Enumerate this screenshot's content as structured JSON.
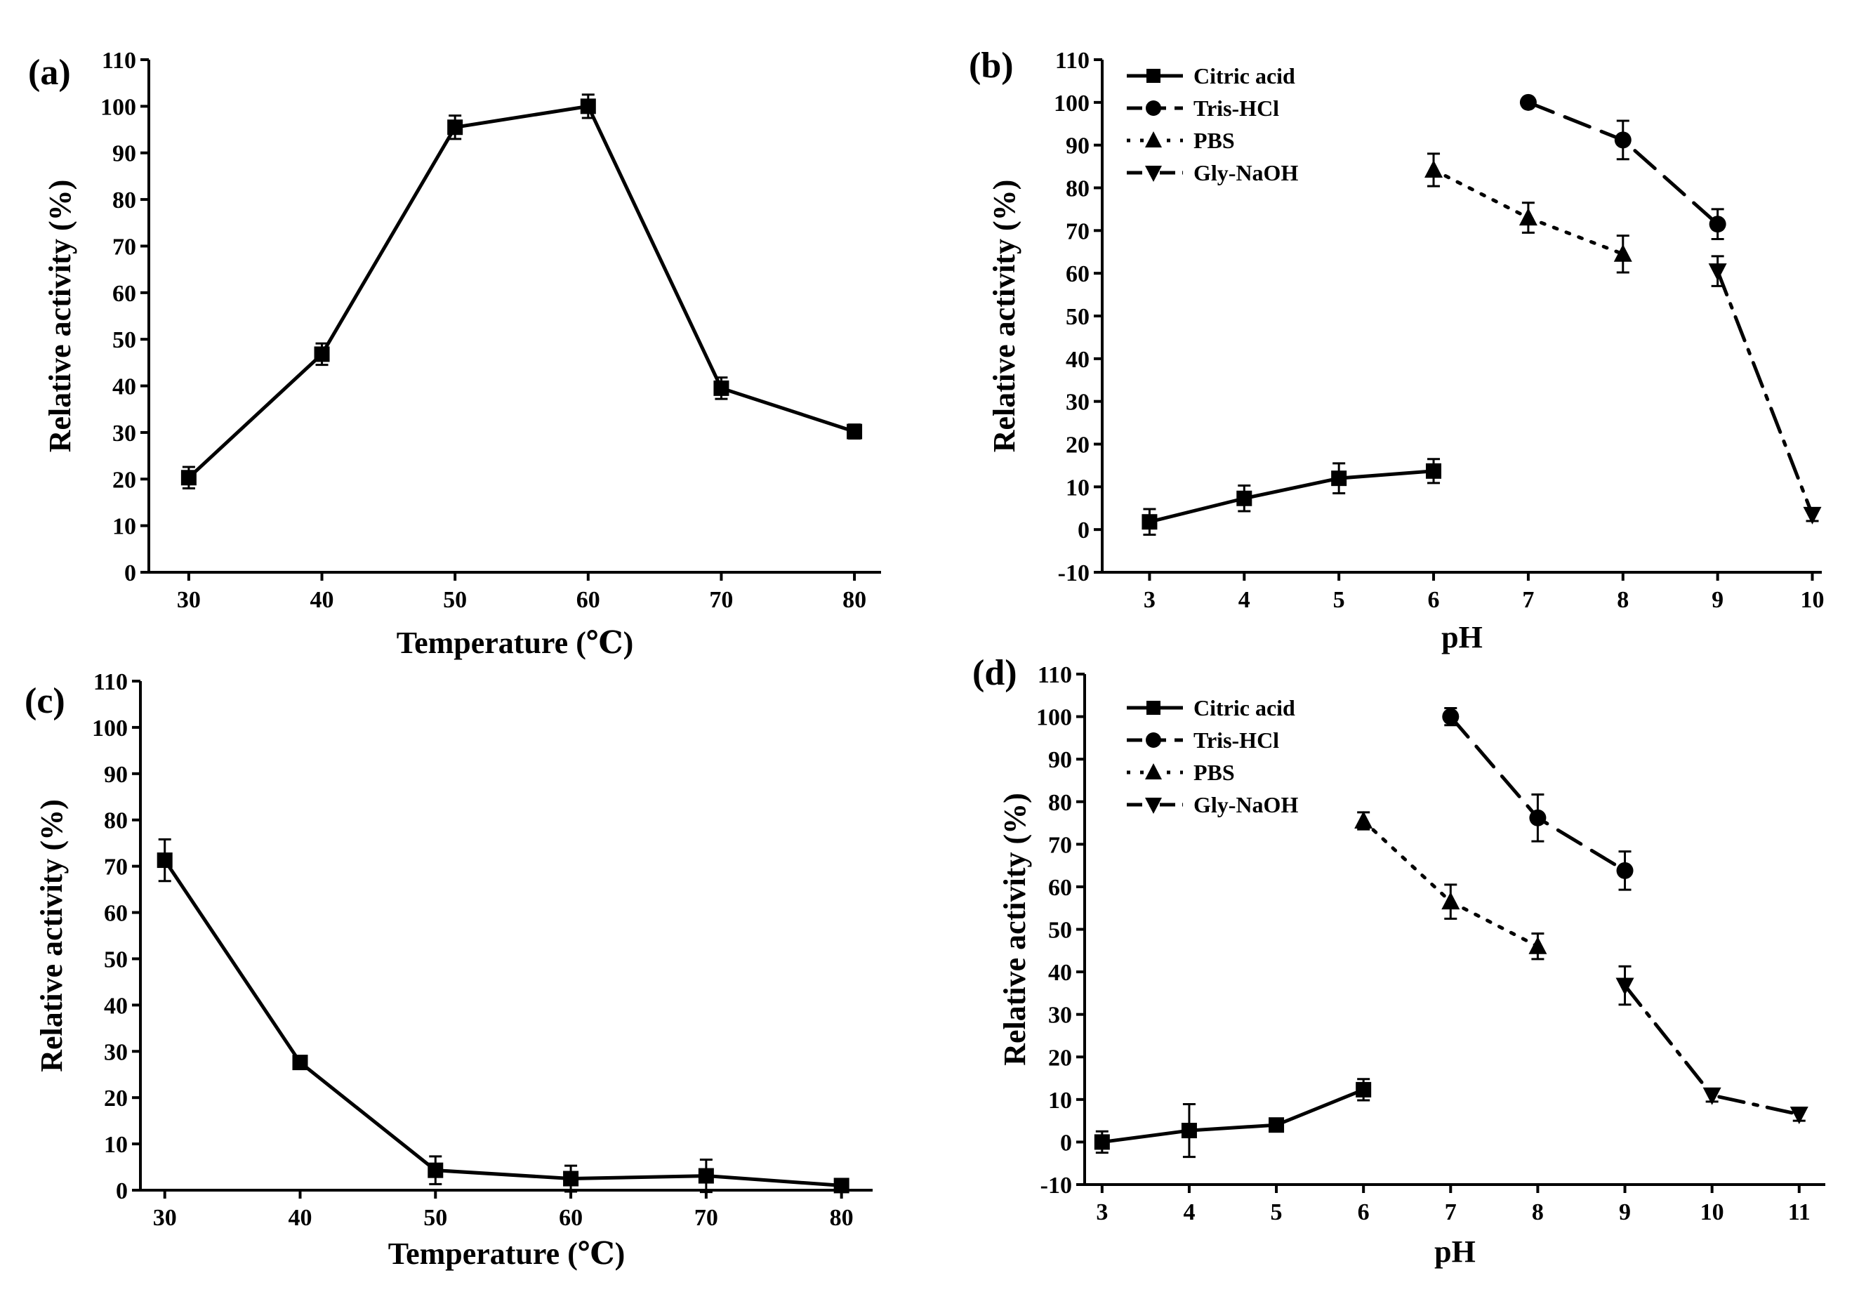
{
  "chart_data": [
    {
      "type": "line",
      "panel": "(a)",
      "xlabel": "Temperature (℃)",
      "ylabel": "Relative activity (%)",
      "xlim": [
        27,
        82
      ],
      "ylim": [
        0,
        110
      ],
      "xticks": [
        30,
        40,
        50,
        60,
        70,
        80
      ],
      "yticks": [
        0,
        10,
        20,
        30,
        40,
        50,
        60,
        70,
        80,
        90,
        100,
        110
      ],
      "legend": false,
      "series": [
        {
          "name": "",
          "marker": "square",
          "dash": "solid",
          "x": [
            30,
            40,
            50,
            60,
            70,
            80
          ],
          "y": [
            20.3,
            46.8,
            95.5,
            100,
            39.5,
            30.2
          ],
          "err": [
            2.3,
            2.3,
            2.5,
            2.5,
            2.3,
            1.5
          ]
        }
      ]
    },
    {
      "type": "line",
      "panel": "(b)",
      "xlabel": "pH",
      "ylabel": "Relative activity (%)",
      "xlim": [
        2.5,
        10.1
      ],
      "ylim": [
        -10,
        110
      ],
      "xticks": [
        3,
        4,
        5,
        6,
        7,
        8,
        9,
        10
      ],
      "yticks": [
        -10,
        0,
        10,
        20,
        30,
        40,
        50,
        60,
        70,
        80,
        90,
        100,
        110
      ],
      "legend": true,
      "series": [
        {
          "name": "Citric acid",
          "marker": "square",
          "dash": "solid",
          "x": [
            3,
            4,
            5,
            6
          ],
          "y": [
            1.8,
            7.3,
            12,
            13.7
          ],
          "err": [
            3,
            3,
            3.5,
            2.8
          ]
        },
        {
          "name": "Tris-HCl",
          "marker": "circle",
          "dash": "dashed",
          "x": [
            7,
            8,
            9
          ],
          "y": [
            100,
            91.2,
            71.5
          ],
          "err": [
            0.5,
            4.5,
            3.5
          ]
        },
        {
          "name": "PBS",
          "marker": "triangle-up",
          "dash": "dotted",
          "x": [
            6,
            7,
            8
          ],
          "y": [
            84.2,
            73,
            64.5
          ],
          "err": [
            3.8,
            3.5,
            4.3
          ]
        },
        {
          "name": "Gly-NaOH",
          "marker": "triangle-down",
          "dash": "dash-dot",
          "x": [
            9,
            10
          ],
          "y": [
            60.5,
            3.5
          ],
          "err": [
            3.5,
            1.5
          ]
        }
      ]
    },
    {
      "type": "line",
      "panel": "(c)",
      "xlabel": "Temperature (℃)",
      "ylabel": "Relative activity (%)",
      "xlim": [
        28.2,
        82.3
      ],
      "ylim": [
        0,
        110
      ],
      "xticks": [
        30,
        40,
        50,
        60,
        70,
        80
      ],
      "yticks": [
        0,
        10,
        20,
        30,
        40,
        50,
        60,
        70,
        80,
        90,
        100,
        110
      ],
      "legend": false,
      "series": [
        {
          "name": "",
          "marker": "square",
          "dash": "solid",
          "x": [
            30,
            40,
            50,
            60,
            70,
            80
          ],
          "y": [
            71.3,
            27.6,
            4.3,
            2.5,
            3.1,
            1
          ],
          "err": [
            4.5,
            1.3,
            3,
            2.8,
            3.5,
            0.8
          ]
        }
      ]
    },
    {
      "type": "line",
      "panel": "(d)",
      "xlabel": "pH",
      "ylabel": "Relative activity (%)",
      "xlim": [
        2.8,
        11.3
      ],
      "ylim": [
        -10,
        110
      ],
      "xticks": [
        3,
        4,
        5,
        6,
        7,
        8,
        9,
        10,
        11
      ],
      "yticks": [
        -10,
        0,
        10,
        20,
        30,
        40,
        50,
        60,
        70,
        80,
        90,
        100,
        110
      ],
      "legend": true,
      "series": [
        {
          "name": "Citric acid",
          "marker": "square",
          "dash": "solid",
          "x": [
            3,
            4,
            5,
            6
          ],
          "y": [
            0,
            2.7,
            4,
            12.3
          ],
          "err": [
            2.5,
            6.2,
            1.5,
            2.5
          ]
        },
        {
          "name": "Tris-HCl",
          "marker": "circle",
          "dash": "dashed",
          "x": [
            7,
            8,
            9
          ],
          "y": [
            100,
            76.2,
            63.8
          ],
          "err": [
            2,
            5.5,
            4.5
          ]
        },
        {
          "name": "PBS",
          "marker": "triangle-up",
          "dash": "dotted",
          "x": [
            6,
            7,
            8
          ],
          "y": [
            75.5,
            56.5,
            46
          ],
          "err": [
            2,
            4,
            3
          ]
        },
        {
          "name": "Gly-NaOH",
          "marker": "triangle-down",
          "dash": "dash-dot",
          "x": [
            9,
            10,
            11
          ],
          "y": [
            36.8,
            11,
            6.5
          ],
          "err": [
            4.5,
            1.5,
            1.5
          ]
        }
      ]
    }
  ]
}
